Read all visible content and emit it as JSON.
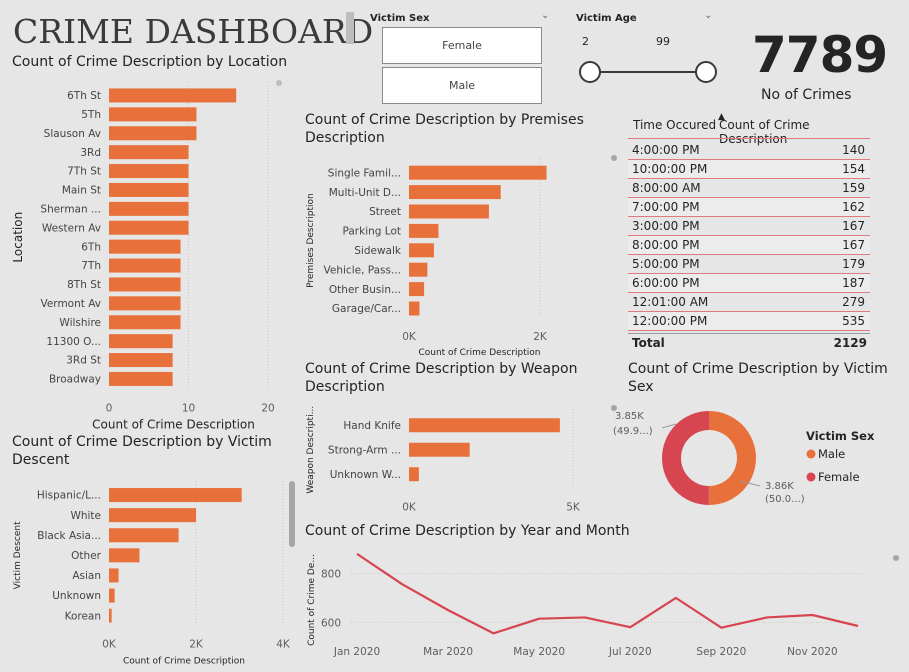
{
  "header": {
    "title": "CRIME DASHBOARD"
  },
  "filters": {
    "victim_sex": {
      "label": "Victim Sex",
      "options": [
        "Female",
        "Male"
      ]
    },
    "victim_age": {
      "label": "Victim Age",
      "min": "2",
      "max": "99"
    }
  },
  "kpi": {
    "value": "7789",
    "label": "No of Crimes"
  },
  "colors": {
    "bar": "#e8703a",
    "line": "#d64550",
    "male": "#e8703a",
    "female": "#d64550",
    "grid": "#c8c8c8"
  },
  "chart_data": [
    {
      "id": "location",
      "type": "bar",
      "title": "Count of Crime Description by Location",
      "xlabel": "Count of Crime Description",
      "ylabel": "Location",
      "categories": [
        "6Th St",
        "5Th",
        "Slauson Av",
        "3Rd",
        "7Th St",
        "Main St",
        "Sherman ...",
        "Western Av",
        "6Th",
        "7Th",
        "8Th St",
        "Vermont Av",
        "Wilshire",
        "11300 O...",
        "3Rd St",
        "Broadway"
      ],
      "values": [
        16,
        11,
        11,
        10,
        10,
        10,
        10,
        10,
        9,
        9,
        9,
        9,
        9,
        8,
        8,
        8
      ],
      "xlim": [
        0,
        20
      ],
      "ticks": [
        "0",
        "10",
        "20"
      ]
    },
    {
      "id": "descent",
      "type": "bar",
      "title": "Count of Crime Description by Victim Descent",
      "xlabel": "Count of Crime Description",
      "ylabel": "Victim Descent",
      "categories": [
        "Hispanic/L...",
        "White",
        "Black Asia...",
        "Other",
        "Asian",
        "Unknown",
        "Korean"
      ],
      "values": [
        3050,
        2000,
        1600,
        700,
        220,
        130,
        60
      ],
      "xlim": [
        0,
        4000
      ],
      "ticks": [
        "0K",
        "2K",
        "4K"
      ]
    },
    {
      "id": "premises",
      "type": "bar",
      "title": "Count of Crime Description by Premises Description",
      "xlabel": "Count of Crime Description",
      "ylabel": "Premises Description",
      "categories": [
        "Single Famil...",
        "Multi-Unit D...",
        "Street",
        "Parking Lot",
        "Sidewalk",
        "Vehicle, Pass...",
        "Other Busin...",
        "Garage/Car..."
      ],
      "values": [
        2100,
        1400,
        1220,
        450,
        380,
        280,
        230,
        160
      ],
      "xlim": [
        0,
        2000
      ],
      "ticks": [
        "0K",
        "2K"
      ]
    },
    {
      "id": "weapon",
      "type": "bar",
      "title": "Count of Crime Description by Weapon Description",
      "xlabel": "",
      "ylabel": "Weapon Descripti...",
      "categories": [
        "Hand Knife",
        "Strong-Arm ...",
        "Unknown W..."
      ],
      "values": [
        4600,
        1850,
        300
      ],
      "xlim": [
        0,
        5000
      ],
      "ticks": [
        "0K",
        "5K"
      ]
    },
    {
      "id": "victim_sex",
      "type": "pie",
      "title": "Count of Crime Description by Victim Sex",
      "legend_title": "Victim Sex",
      "labels": [
        "Male",
        "Female"
      ],
      "values": [
        3860,
        3850
      ],
      "data_labels": [
        [
          "3.86K",
          "(50.0...)"
        ],
        [
          "3.85K",
          "(49.9...)"
        ]
      ]
    },
    {
      "id": "year_month",
      "type": "line",
      "title": "Count of Crime Description by Year and Month",
      "ylabel": "Count of Crime De...",
      "x": [
        "Jan 2020",
        "Feb 2020",
        "Mar 2020",
        "Apr 2020",
        "May 2020",
        "Jun 2020",
        "Jul 2020",
        "Aug 2020",
        "Sep 2020",
        "Oct 2020",
        "Nov 2020",
        "Dec 2020"
      ],
      "tick_labels": [
        "Jan 2020",
        "Mar 2020",
        "May 2020",
        "Jul 2020",
        "Sep 2020",
        "Nov 2020"
      ],
      "values": [
        880,
        755,
        650,
        555,
        615,
        620,
        580,
        700,
        578,
        620,
        630,
        585
      ],
      "ylim": [
        540,
        900
      ],
      "yticks": [
        "600",
        "800"
      ]
    },
    {
      "id": "time_table",
      "type": "table",
      "columns": [
        "Time Occured",
        "Count of Crime Description"
      ],
      "rows": [
        [
          "4:00:00 PM",
          "140"
        ],
        [
          "10:00:00 PM",
          "154"
        ],
        [
          "8:00:00 AM",
          "159"
        ],
        [
          "7:00:00 PM",
          "162"
        ],
        [
          "3:00:00 PM",
          "167"
        ],
        [
          "8:00:00 PM",
          "167"
        ],
        [
          "5:00:00 PM",
          "179"
        ],
        [
          "6:00:00 PM",
          "187"
        ],
        [
          "12:01:00 AM",
          "279"
        ],
        [
          "12:00:00 PM",
          "535"
        ]
      ],
      "total": [
        "Total",
        "2129"
      ]
    }
  ]
}
